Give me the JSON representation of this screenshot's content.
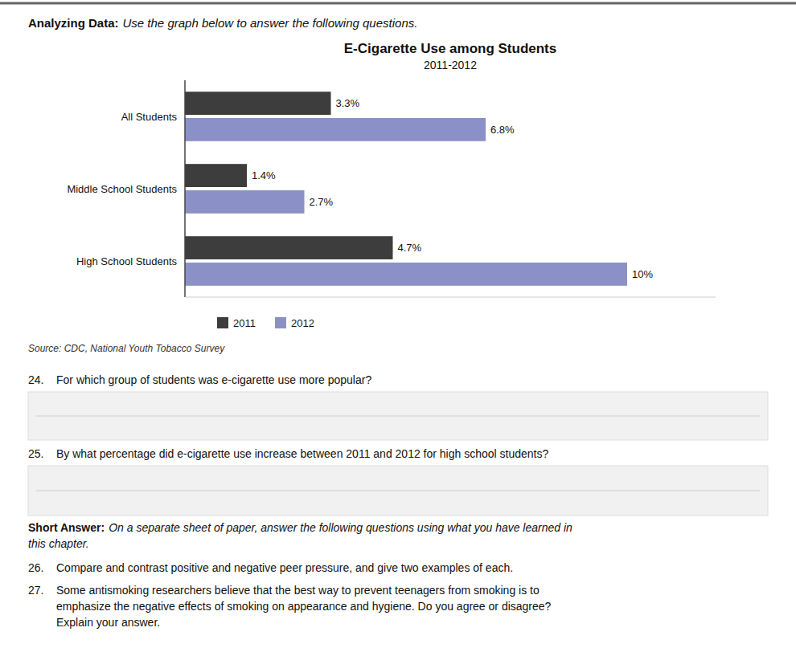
{
  "chart_data": {
    "type": "bar",
    "orientation": "horizontal",
    "title": "E-Cigarette Use among Students",
    "subtitle": "2011-2012",
    "categories": [
      "All Students",
      "Middle School Students",
      "High School Students"
    ],
    "series": [
      {
        "name": "2011",
        "color": "#3d3d3d",
        "values": [
          3.3,
          1.4,
          4.7
        ],
        "value_labels": [
          "3.3%",
          "1.4%",
          "4.7%"
        ]
      },
      {
        "name": "2012",
        "color": "#8b91c7",
        "values": [
          6.8,
          2.7,
          10.0
        ],
        "value_labels": [
          "6.8%",
          "2.7%",
          "10%"
        ]
      }
    ],
    "xlim": [
      0,
      12
    ],
    "data_labels": true,
    "tick_labels": "y",
    "grid": false,
    "legend": "bottom",
    "annotations": [
      "Analyzing Data:",
      "Use the graph below to answer the following questions.",
      "Source: CDC, National Youth Tobacco Survey",
      "24.",
      "For which group of students was e-cigarette use more popular?",
      "25.",
      "By what percentage did e-cigarette use increase between 2011 and 2012 for high school students?",
      "Short Answer:",
      "On a separate sheet of paper, answer the following questions using what you have learned in",
      "this chapter.",
      "26.",
      "Compare and contrast positive and negative peer pressure, and give two examples of each.",
      "27.",
      "Some antismoking researchers believe that the best way to prevent teenagers from smoking is to",
      "emphasize the negative effects of smoking on appearance and hygiene. Do you agree or disagree?",
      "Explain your answer."
    ]
  }
}
